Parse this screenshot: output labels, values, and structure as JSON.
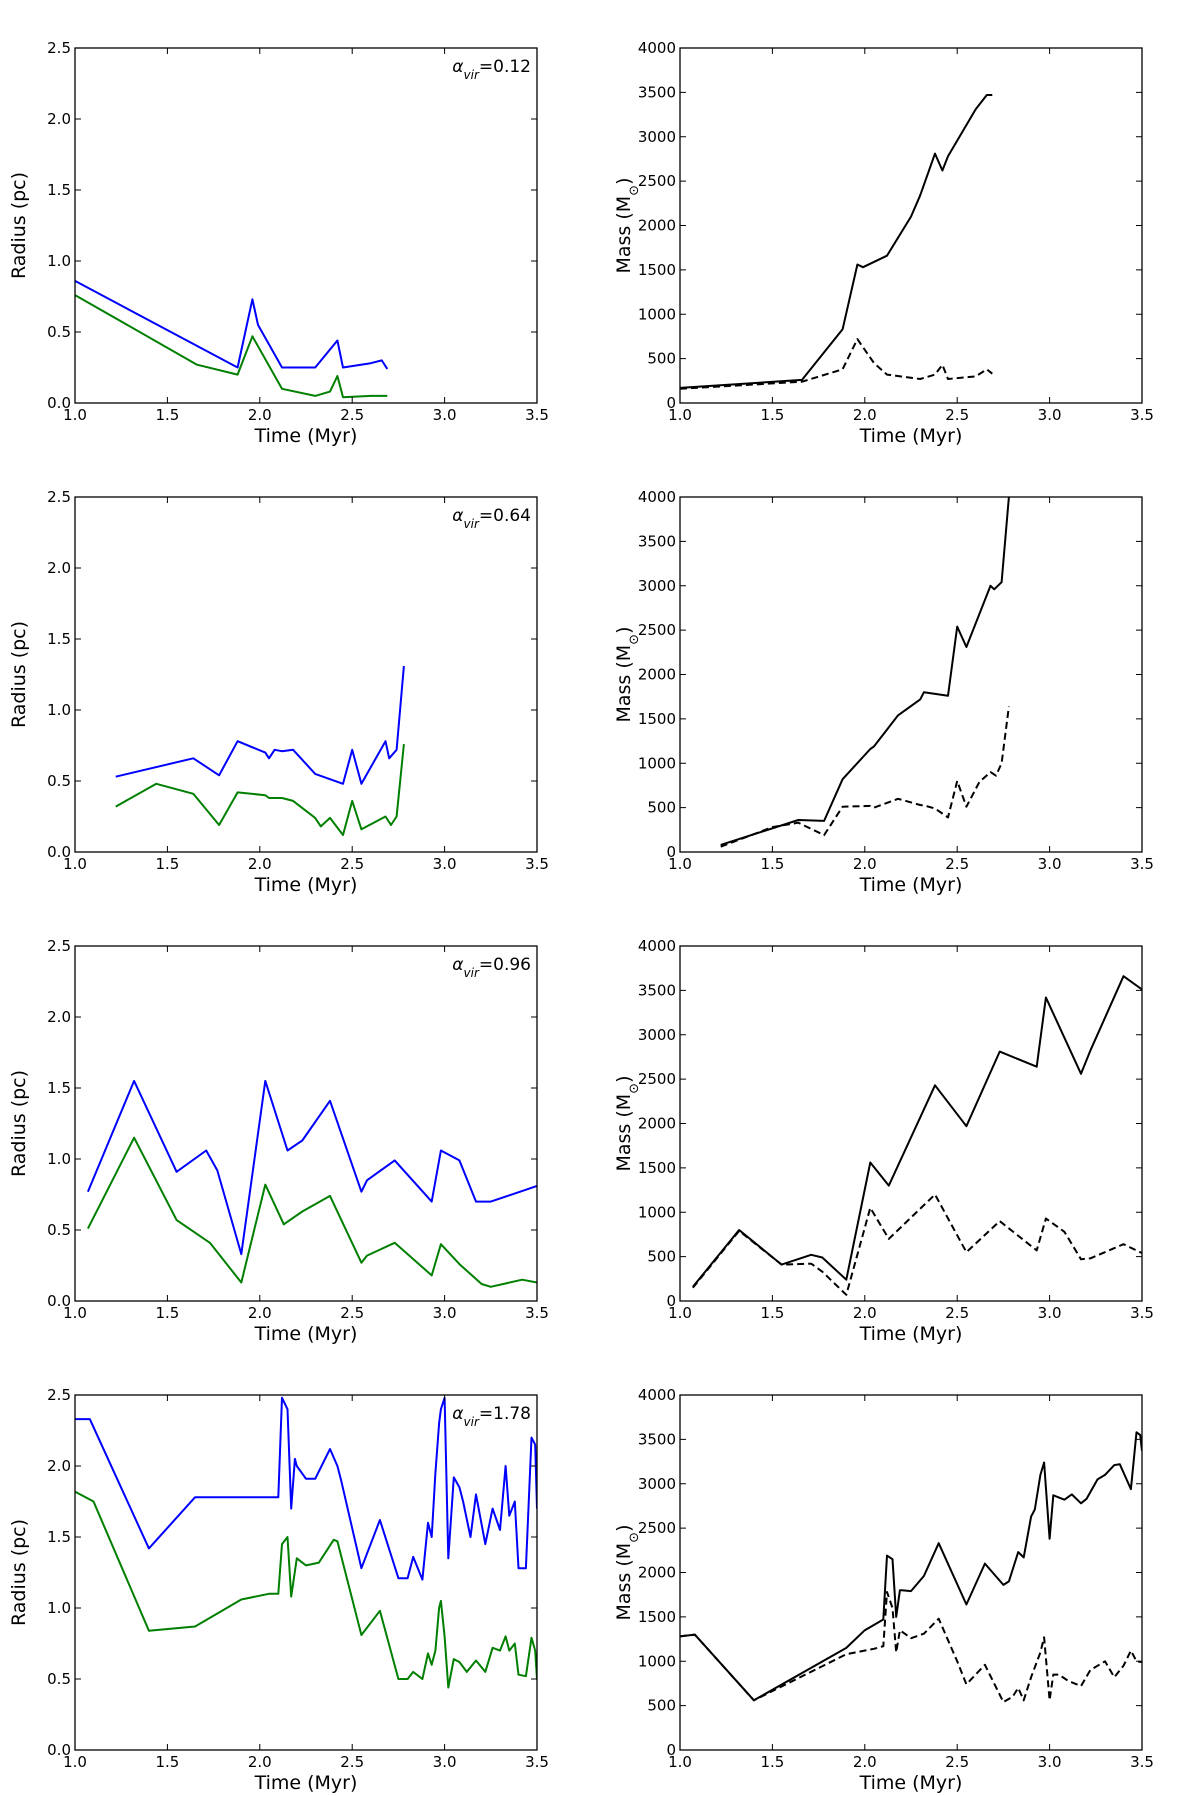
{
  "figure": {
    "panels": [
      {
        "id": "r1",
        "annotation": "α_vir=0.12"
      },
      {
        "id": "r2",
        "annotation": "α_vir=0.64"
      },
      {
        "id": "r3",
        "annotation": "α_vir=0.96"
      },
      {
        "id": "r4",
        "annotation": "α_vir=1.78"
      }
    ]
  },
  "chart_data": [
    {
      "type": "line",
      "id": "r1-radius",
      "title": "",
      "xlabel": "Time (Myr)",
      "ylabel": "Radius (pc)",
      "xlim": [
        1.0,
        3.5
      ],
      "ylim": [
        0.0,
        2.5
      ],
      "xticks": [
        "1.0",
        "1.5",
        "2.0",
        "2.5",
        "3.0",
        "3.5"
      ],
      "yticks": [
        "0.0",
        "0.5",
        "1.0",
        "1.5",
        "2.0",
        "2.5"
      ],
      "annotation": {
        "symbol": "α",
        "sub": "vir",
        "value": "=0.12"
      },
      "series": [
        {
          "name": "blue",
          "color": "#0000ff",
          "dash": false,
          "x": [
            1.0,
            1.88,
            1.96,
            1.99,
            2.12,
            2.3,
            2.42,
            2.45,
            2.6,
            2.66,
            2.69
          ],
          "y": [
            0.86,
            0.25,
            0.73,
            0.55,
            0.25,
            0.25,
            0.44,
            0.25,
            0.28,
            0.3,
            0.24
          ]
        },
        {
          "name": "green",
          "color": "#007f00",
          "dash": false,
          "x": [
            1.0,
            1.66,
            1.88,
            1.96,
            2.12,
            2.3,
            2.38,
            2.42,
            2.45,
            2.6,
            2.69
          ],
          "y": [
            0.76,
            0.27,
            0.2,
            0.47,
            0.1,
            0.05,
            0.08,
            0.19,
            0.04,
            0.05,
            0.05
          ]
        }
      ]
    },
    {
      "type": "line",
      "id": "r1-mass",
      "title": "",
      "xlabel": "Time (Myr)",
      "ylabel": "Mass (M",
      "xlim": [
        1.0,
        3.5
      ],
      "ylim": [
        0,
        4000
      ],
      "xticks": [
        "1.0",
        "1.5",
        "2.0",
        "2.5",
        "3.0",
        "3.5"
      ],
      "yticks": [
        "0",
        "500",
        "1000",
        "1500",
        "2000",
        "2500",
        "3000",
        "3500",
        "4000"
      ],
      "series": [
        {
          "name": "solid",
          "color": "#000000",
          "dash": false,
          "x": [
            1.0,
            1.66,
            1.88,
            1.96,
            1.99,
            2.12,
            2.25,
            2.3,
            2.38,
            2.42,
            2.45,
            2.6,
            2.66,
            2.69
          ],
          "y": [
            170,
            260,
            830,
            1560,
            1530,
            1660,
            2100,
            2340,
            2810,
            2620,
            2780,
            3310,
            3470,
            3470
          ]
        },
        {
          "name": "dashed",
          "color": "#000000",
          "dash": true,
          "x": [
            1.0,
            1.66,
            1.88,
            1.96,
            2.05,
            2.12,
            2.3,
            2.38,
            2.42,
            2.45,
            2.6,
            2.66,
            2.69
          ],
          "y": [
            160,
            240,
            380,
            720,
            450,
            320,
            270,
            320,
            430,
            270,
            300,
            380,
            330
          ]
        }
      ]
    },
    {
      "type": "line",
      "id": "r2-radius",
      "title": "",
      "xlabel": "Time (Myr)",
      "ylabel": "Radius (pc)",
      "xlim": [
        1.0,
        3.5
      ],
      "ylim": [
        0.0,
        2.5
      ],
      "xticks": [
        "1.0",
        "1.5",
        "2.0",
        "2.5",
        "3.0",
        "3.5"
      ],
      "yticks": [
        "0.0",
        "0.5",
        "1.0",
        "1.5",
        "2.0",
        "2.5"
      ],
      "annotation": {
        "symbol": "α",
        "sub": "vir",
        "value": "=0.64"
      },
      "series": [
        {
          "name": "blue",
          "color": "#0000ff",
          "dash": false,
          "x": [
            1.22,
            1.64,
            1.78,
            1.88,
            2.03,
            2.05,
            2.08,
            2.12,
            2.18,
            2.3,
            2.45,
            2.5,
            2.55,
            2.68,
            2.7,
            2.74,
            2.78
          ],
          "y": [
            0.53,
            0.66,
            0.54,
            0.78,
            0.7,
            0.66,
            0.72,
            0.71,
            0.72,
            0.55,
            0.48,
            0.72,
            0.48,
            0.78,
            0.66,
            0.72,
            1.31
          ]
        },
        {
          "name": "green",
          "color": "#007f00",
          "dash": false,
          "x": [
            1.22,
            1.44,
            1.64,
            1.78,
            1.88,
            2.03,
            2.05,
            2.12,
            2.18,
            2.3,
            2.33,
            2.38,
            2.45,
            2.5,
            2.55,
            2.68,
            2.71,
            2.74,
            2.78
          ],
          "y": [
            0.32,
            0.48,
            0.41,
            0.19,
            0.42,
            0.4,
            0.38,
            0.38,
            0.36,
            0.24,
            0.18,
            0.24,
            0.12,
            0.36,
            0.16,
            0.25,
            0.19,
            0.25,
            0.76
          ]
        }
      ]
    },
    {
      "type": "line",
      "id": "r2-mass",
      "title": "",
      "xlabel": "Time (Myr)",
      "ylabel": "Mass (M",
      "xlim": [
        1.0,
        3.5
      ],
      "ylim": [
        0,
        4000
      ],
      "xticks": [
        "1.0",
        "1.5",
        "2.0",
        "2.5",
        "3.0",
        "3.5"
      ],
      "yticks": [
        "0",
        "500",
        "1000",
        "1500",
        "2000",
        "2500",
        "3000",
        "3500",
        "4000"
      ],
      "series": [
        {
          "name": "solid",
          "color": "#000000",
          "dash": false,
          "x": [
            1.22,
            1.64,
            1.78,
            1.88,
            2.03,
            2.05,
            2.18,
            2.3,
            2.32,
            2.45,
            2.5,
            2.55,
            2.68,
            2.7,
            2.74,
            2.78
          ],
          "y": [
            80,
            360,
            350,
            820,
            1160,
            1190,
            1540,
            1720,
            1800,
            1760,
            2540,
            2310,
            3000,
            2960,
            3040,
            4000
          ]
        },
        {
          "name": "dashed",
          "color": "#000000",
          "dash": true,
          "x": [
            1.22,
            1.5,
            1.64,
            1.78,
            1.88,
            2.03,
            2.05,
            2.18,
            2.3,
            2.33,
            2.38,
            2.45,
            2.5,
            2.55,
            2.62,
            2.68,
            2.71,
            2.74,
            2.78
          ],
          "y": [
            60,
            280,
            330,
            190,
            510,
            520,
            500,
            600,
            530,
            520,
            490,
            390,
            800,
            510,
            790,
            900,
            860,
            1000,
            1640
          ]
        }
      ]
    },
    {
      "type": "line",
      "id": "r3-radius",
      "title": "",
      "xlabel": "Time (Myr)",
      "ylabel": "Radius (pc)",
      "xlim": [
        1.0,
        3.5
      ],
      "ylim": [
        0.0,
        2.5
      ],
      "xticks": [
        "1.0",
        "1.5",
        "2.0",
        "2.5",
        "3.0",
        "3.5"
      ],
      "yticks": [
        "0.0",
        "0.5",
        "1.0",
        "1.5",
        "2.0",
        "2.5"
      ],
      "annotation": {
        "symbol": "α",
        "sub": "vir",
        "value": "=0.96"
      },
      "series": [
        {
          "name": "blue",
          "color": "#0000ff",
          "dash": false,
          "x": [
            1.07,
            1.32,
            1.55,
            1.71,
            1.77,
            1.9,
            2.03,
            2.15,
            2.23,
            2.38,
            2.55,
            2.58,
            2.73,
            2.93,
            2.98,
            3.08,
            3.17,
            3.2,
            3.25,
            3.5
          ],
          "y": [
            0.77,
            1.55,
            0.91,
            1.06,
            0.92,
            0.33,
            1.55,
            1.06,
            1.13,
            1.41,
            0.77,
            0.85,
            0.99,
            0.7,
            1.06,
            0.99,
            0.7,
            0.7,
            0.7,
            0.81
          ]
        },
        {
          "name": "green",
          "color": "#007f00",
          "dash": false,
          "x": [
            1.07,
            1.32,
            1.55,
            1.73,
            1.9,
            2.03,
            2.13,
            2.23,
            2.38,
            2.55,
            2.58,
            2.73,
            2.93,
            2.98,
            3.08,
            3.2,
            3.25,
            3.42,
            3.5
          ],
          "y": [
            0.51,
            1.15,
            0.57,
            0.41,
            0.13,
            0.82,
            0.54,
            0.63,
            0.74,
            0.27,
            0.32,
            0.41,
            0.18,
            0.4,
            0.26,
            0.12,
            0.1,
            0.15,
            0.13
          ]
        }
      ]
    },
    {
      "type": "line",
      "id": "r3-mass",
      "title": "",
      "xlabel": "Time (Myr)",
      "ylabel": "Mass (M",
      "xlim": [
        1.0,
        3.5
      ],
      "ylim": [
        0,
        4000
      ],
      "xticks": [
        "1.0",
        "1.5",
        "2.0",
        "2.5",
        "3.0",
        "3.5"
      ],
      "yticks": [
        "0",
        "500",
        "1000",
        "1500",
        "2000",
        "2500",
        "3000",
        "3500",
        "4000"
      ],
      "series": [
        {
          "name": "solid",
          "color": "#000000",
          "dash": false,
          "x": [
            1.07,
            1.32,
            1.55,
            1.71,
            1.77,
            1.9,
            2.03,
            2.13,
            2.38,
            2.55,
            2.73,
            2.93,
            2.98,
            3.17,
            3.22,
            3.4,
            3.5
          ],
          "y": [
            160,
            800,
            410,
            520,
            490,
            240,
            1560,
            1300,
            2430,
            1970,
            2810,
            2640,
            3420,
            2560,
            2820,
            3660,
            3510
          ]
        },
        {
          "name": "dashed",
          "color": "#000000",
          "dash": true,
          "x": [
            1.07,
            1.32,
            1.55,
            1.71,
            1.77,
            1.9,
            2.03,
            2.13,
            2.38,
            2.55,
            2.73,
            2.93,
            2.98,
            3.08,
            3.17,
            3.22,
            3.4,
            3.5
          ],
          "y": [
            150,
            790,
            410,
            420,
            330,
            70,
            1050,
            700,
            1200,
            550,
            900,
            570,
            930,
            780,
            470,
            480,
            640,
            540
          ]
        }
      ]
    },
    {
      "type": "line",
      "id": "r4-radius",
      "title": "",
      "xlabel": "Time (Myr)",
      "ylabel": "Radius (pc)",
      "xlim": [
        1.0,
        3.5
      ],
      "ylim": [
        0.0,
        2.5
      ],
      "xticks": [
        "1.0",
        "1.5",
        "2.0",
        "2.5",
        "3.0",
        "3.5"
      ],
      "yticks": [
        "0.0",
        "0.5",
        "1.0",
        "1.5",
        "2.0",
        "2.5"
      ],
      "annotation": {
        "symbol": "α",
        "sub": "vir",
        "value": "=1.78"
      },
      "series": [
        {
          "name": "blue",
          "color": "#0000ff",
          "dash": false,
          "x": [
            1.0,
            1.08,
            1.4,
            1.65,
            2.1,
            2.12,
            2.15,
            2.17,
            2.19,
            2.2,
            2.25,
            2.3,
            2.38,
            2.42,
            2.44,
            2.55,
            2.65,
            2.75,
            2.8,
            2.83,
            2.88,
            2.91,
            2.93,
            2.95,
            2.97,
            2.98,
            3.0,
            3.02,
            3.05,
            3.08,
            3.1,
            3.14,
            3.17,
            3.22,
            3.26,
            3.3,
            3.33,
            3.35,
            3.38,
            3.4,
            3.44,
            3.47,
            3.49,
            3.5
          ],
          "y": [
            2.33,
            2.33,
            1.42,
            1.78,
            1.78,
            2.48,
            2.4,
            1.7,
            2.05,
            2.0,
            1.91,
            1.91,
            2.12,
            2.0,
            1.9,
            1.28,
            1.62,
            1.21,
            1.21,
            1.36,
            1.2,
            1.6,
            1.5,
            1.95,
            2.3,
            2.4,
            2.48,
            1.35,
            1.92,
            1.85,
            1.75,
            1.5,
            1.8,
            1.45,
            1.7,
            1.55,
            2.0,
            1.65,
            1.75,
            1.28,
            1.28,
            2.2,
            2.15,
            1.7
          ]
        },
        {
          "name": "green",
          "color": "#007f00",
          "dash": false,
          "x": [
            1.0,
            1.1,
            1.4,
            1.65,
            1.9,
            2.05,
            2.1,
            2.12,
            2.15,
            2.17,
            2.2,
            2.25,
            2.32,
            2.4,
            2.42,
            2.55,
            2.65,
            2.75,
            2.8,
            2.83,
            2.88,
            2.91,
            2.93,
            2.95,
            2.97,
            2.98,
            3.0,
            3.02,
            3.05,
            3.08,
            3.12,
            3.17,
            3.22,
            3.26,
            3.3,
            3.33,
            3.35,
            3.38,
            3.4,
            3.44,
            3.47,
            3.49,
            3.5
          ],
          "y": [
            1.82,
            1.75,
            0.84,
            0.87,
            1.06,
            1.1,
            1.1,
            1.45,
            1.5,
            1.08,
            1.35,
            1.3,
            1.32,
            1.48,
            1.47,
            0.81,
            0.98,
            0.5,
            0.5,
            0.55,
            0.5,
            0.68,
            0.6,
            0.7,
            1.0,
            1.05,
            0.8,
            0.44,
            0.64,
            0.62,
            0.55,
            0.63,
            0.55,
            0.72,
            0.7,
            0.8,
            0.7,
            0.75,
            0.53,
            0.52,
            0.79,
            0.7,
            0.5
          ]
        }
      ]
    },
    {
      "type": "line",
      "id": "r4-mass",
      "title": "",
      "xlabel": "Time (Myr)",
      "ylabel": "Mass (M",
      "xlim": [
        1.0,
        3.5
      ],
      "ylim": [
        0,
        4000
      ],
      "xticks": [
        "1.0",
        "1.5",
        "2.0",
        "2.5",
        "3.0",
        "3.5"
      ],
      "yticks": [
        "0",
        "500",
        "1000",
        "1500",
        "2000",
        "2500",
        "3000",
        "3500",
        "4000"
      ],
      "series": [
        {
          "name": "solid",
          "color": "#000000",
          "dash": false,
          "x": [
            1.0,
            1.08,
            1.4,
            1.9,
            2.0,
            2.1,
            2.12,
            2.15,
            2.17,
            2.19,
            2.2,
            2.25,
            2.32,
            2.4,
            2.55,
            2.65,
            2.75,
            2.78,
            2.83,
            2.86,
            2.9,
            2.92,
            2.95,
            2.97,
            3.0,
            3.02,
            3.08,
            3.12,
            3.17,
            3.2,
            3.26,
            3.3,
            3.35,
            3.38,
            3.44,
            3.47,
            3.49,
            3.5
          ],
          "y": [
            1280,
            1300,
            560,
            1150,
            1350,
            1470,
            2190,
            2150,
            1500,
            1800,
            1800,
            1790,
            1960,
            2330,
            1640,
            2100,
            1860,
            1900,
            2230,
            2170,
            2630,
            2710,
            3100,
            3240,
            2380,
            2870,
            2820,
            2880,
            2780,
            2830,
            3050,
            3100,
            3210,
            3220,
            2940,
            3580,
            3550,
            3370
          ]
        },
        {
          "name": "dashed",
          "color": "#000000",
          "dash": true,
          "x": [
            1.0,
            1.08,
            1.4,
            1.9,
            2.05,
            2.1,
            2.12,
            2.15,
            2.17,
            2.19,
            2.25,
            2.32,
            2.4,
            2.5,
            2.55,
            2.65,
            2.75,
            2.8,
            2.83,
            2.86,
            2.9,
            2.95,
            2.97,
            3.0,
            3.02,
            3.05,
            3.1,
            3.17,
            3.22,
            3.3,
            3.35,
            3.4,
            3.44,
            3.47,
            3.5
          ],
          "y": [
            1280,
            1300,
            560,
            1080,
            1140,
            1170,
            1780,
            1600,
            1100,
            1350,
            1260,
            1310,
            1480,
            1000,
            740,
            960,
            540,
            600,
            700,
            560,
            820,
            1100,
            1270,
            560,
            850,
            850,
            780,
            720,
            900,
            1000,
            820,
            950,
            1120,
            1000,
            990
          ]
        }
      ]
    }
  ]
}
